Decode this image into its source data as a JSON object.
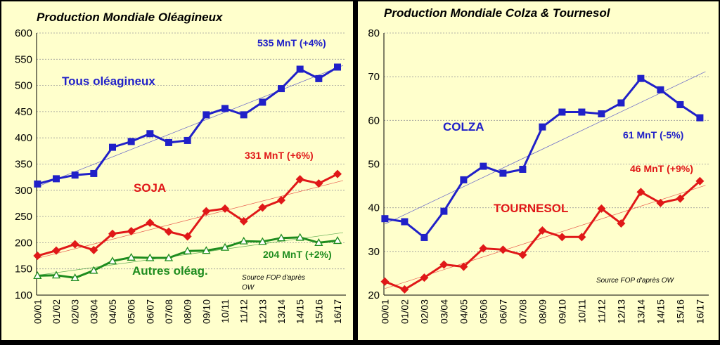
{
  "colors": {
    "background": "#000000",
    "panel": "#FFFFCC",
    "blue": "#2020C8",
    "red": "#E01818",
    "green": "#1E8C1E"
  },
  "chart_data": [
    {
      "type": "line",
      "title": "Production Mondiale Oléagineux",
      "categories": [
        "00/01",
        "01/02",
        "02/03",
        "03/04",
        "04/05",
        "05/06",
        "06/07",
        "07/08",
        "08/09",
        "09/10",
        "10/11",
        "11/12",
        "12/13",
        "13/14",
        "14/15",
        "15/16",
        "16/17"
      ],
      "ylim": [
        100,
        600
      ],
      "yticks": [
        100,
        150,
        200,
        250,
        300,
        350,
        400,
        450,
        500,
        550,
        600
      ],
      "grid": true,
      "series": [
        {
          "name": "Tous oléagineux",
          "color": "#2020C8",
          "marker": "square",
          "values": [
            312,
            322,
            329,
            332,
            382,
            393,
            408,
            391,
            395,
            444,
            456,
            444,
            468,
            494,
            531,
            513,
            535
          ]
        },
        {
          "name": "SOJA",
          "color": "#E01818",
          "marker": "diamond",
          "values": [
            175,
            185,
            197,
            186,
            217,
            222,
            238,
            221,
            212,
            260,
            265,
            241,
            267,
            281,
            321,
            313,
            331
          ]
        },
        {
          "name": "Autres oléag.",
          "color": "#1E8C1E",
          "marker": "triangle",
          "values": [
            137,
            138,
            133,
            147,
            165,
            172,
            171,
            171,
            184,
            185,
            191,
            203,
            202,
            209,
            210,
            200,
            204
          ]
        }
      ],
      "annotations": [
        {
          "text": "535 MnT (+4%)",
          "color": "#2020C8"
        },
        {
          "text": "331  MnT (+6%)",
          "color": "#E01818"
        },
        {
          "text": "204 MnT (+2%)",
          "color": "#1E8C1E"
        }
      ],
      "source_line1": "Source FOP d'après",
      "source_line2": "OW"
    },
    {
      "type": "line",
      "title": "Production Mondiale Colza & Tournesol",
      "categories": [
        "00/01",
        "01/02",
        "02/03",
        "03/04",
        "04/05",
        "05/06",
        "06/07",
        "07/08",
        "08/09",
        "09/10",
        "10/11",
        "11/12",
        "12/13",
        "13/14",
        "14/15",
        "15/16",
        "16/17"
      ],
      "ylim": [
        20,
        80
      ],
      "yticks": [
        20,
        30,
        40,
        50,
        60,
        70,
        80
      ],
      "grid": true,
      "series": [
        {
          "name": "COLZA",
          "color": "#2020C8",
          "marker": "square",
          "values": [
            37.5,
            36.8,
            33.2,
            39.2,
            46.4,
            49.5,
            47.9,
            48.8,
            58.5,
            61.9,
            61.9,
            61.5,
            64.0,
            69.6,
            67.0,
            63.6,
            60.6
          ]
        },
        {
          "name": "TOURNESOL",
          "color": "#E01818",
          "marker": "diamond",
          "values": [
            23.1,
            21.3,
            24.0,
            27.0,
            26.5,
            30.7,
            30.4,
            29.2,
            34.8,
            33.3,
            33.3,
            39.8,
            36.4,
            43.6,
            41.1,
            42.1,
            46.1
          ]
        }
      ],
      "annotations": [
        {
          "text": "61 MnT  (-5%)",
          "color": "#2020C8"
        },
        {
          "text": "46 MnT (+9%)",
          "color": "#E01818"
        }
      ],
      "source_line1": "Source FOP d'après OW"
    }
  ]
}
